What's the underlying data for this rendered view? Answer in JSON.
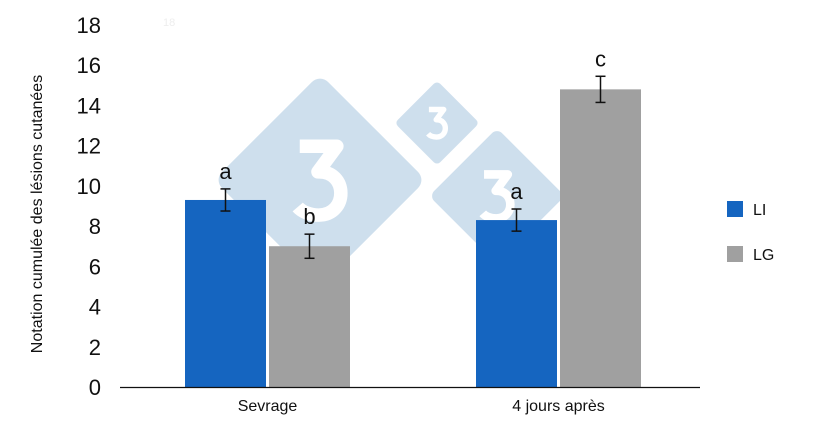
{
  "chart_data": {
    "type": "bar",
    "title": "",
    "xlabel": "",
    "ylabel": "Notation cumulée des lésions cutanées",
    "ylim": [
      0,
      18
    ],
    "yticks": [
      0,
      2,
      4,
      6,
      8,
      10,
      12,
      14,
      16,
      18
    ],
    "categories": [
      "Sevrage",
      "4 jours après"
    ],
    "series": [
      {
        "name": "LI",
        "color": "#1565c0",
        "values": [
          9.3,
          8.3
        ],
        "errors": [
          0.55,
          0.55
        ],
        "labels": [
          "a",
          "a"
        ]
      },
      {
        "name": "LG",
        "color": "#a0a0a0",
        "values": [
          7.0,
          14.8
        ],
        "errors": [
          0.6,
          0.65
        ],
        "labels": [
          "b",
          "c"
        ]
      }
    ],
    "legend": "right",
    "grid": false,
    "faint_text": "18"
  },
  "watermark": {
    "text": "3",
    "color": "#c5d9ea"
  }
}
